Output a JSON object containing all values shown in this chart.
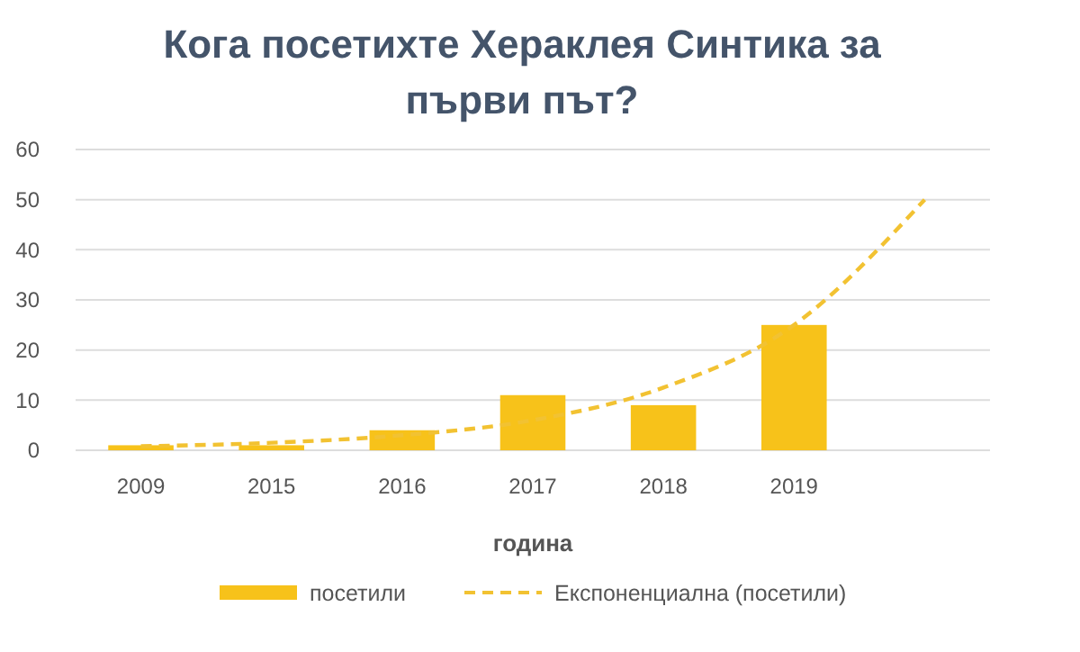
{
  "chart_data": {
    "type": "bar",
    "title": "Кога посетихте Хераклея Синтика за първи път?",
    "xlabel": "година",
    "categories": [
      "2009",
      "2015",
      "2016",
      "2017",
      "2018",
      "2019",
      null
    ],
    "series": [
      {
        "name": "посетили",
        "color": "#f7c21a",
        "values": [
          1,
          1,
          4,
          11,
          9,
          25,
          null
        ]
      },
      {
        "name": "Експоненциална (посетили)",
        "type": "line",
        "color": "#f2c232",
        "line_style": "dashed",
        "values": [
          0.8,
          1.5,
          3,
          6,
          12.5,
          25,
          50
        ]
      }
    ],
    "ylim": [
      0,
      60
    ],
    "yticks": [
      0,
      10,
      20,
      30,
      40,
      50,
      60
    ],
    "grid": "y",
    "legend": "bottom"
  }
}
